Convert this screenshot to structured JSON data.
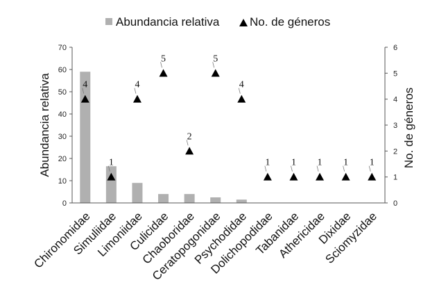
{
  "chart_data": {
    "type": "bar",
    "categories": [
      "Chironomidae",
      "Simuliidae",
      "Limoniidae",
      "Culicidae",
      "Chaoboridae",
      "Ceratopogonidae",
      "Psychodidae",
      "Dolichopodidae",
      "Tabanidae",
      "Athericidae",
      "Dixidae",
      "Sciomyzidae"
    ],
    "series": [
      {
        "name": "Abundancia relativa",
        "kind": "bar",
        "axis": "left",
        "color": "#b0b0b0",
        "values": [
          59,
          16.5,
          9,
          4,
          4,
          2.5,
          1.5,
          0,
          0,
          0,
          0,
          0
        ]
      },
      {
        "name": "No. de géneros",
        "kind": "marker",
        "axis": "right",
        "color": "#000000",
        "values": [
          4,
          1,
          4,
          5,
          2,
          5,
          4,
          1,
          1,
          1,
          1,
          1
        ],
        "labels": [
          "4",
          "1",
          "4",
          "5",
          "2",
          "5",
          "4",
          "1",
          "1",
          "1",
          "1",
          "1"
        ]
      }
    ],
    "ylabel": "Abundancia relativa",
    "y2label": "No. de géneros",
    "ylim": [
      0,
      70
    ],
    "y2lim": [
      0,
      6
    ],
    "yticks": [
      "0",
      "10",
      "20",
      "30",
      "40",
      "50",
      "60",
      "70"
    ],
    "y2ticks": [
      "0",
      "1",
      "2",
      "3",
      "4",
      "5",
      "6"
    ],
    "legend": [
      {
        "label": "Abundancia relativa",
        "symbol": "square"
      },
      {
        "label": "No. de géneros",
        "symbol": "triangle"
      }
    ],
    "legend_position": "top",
    "grid": false
  }
}
